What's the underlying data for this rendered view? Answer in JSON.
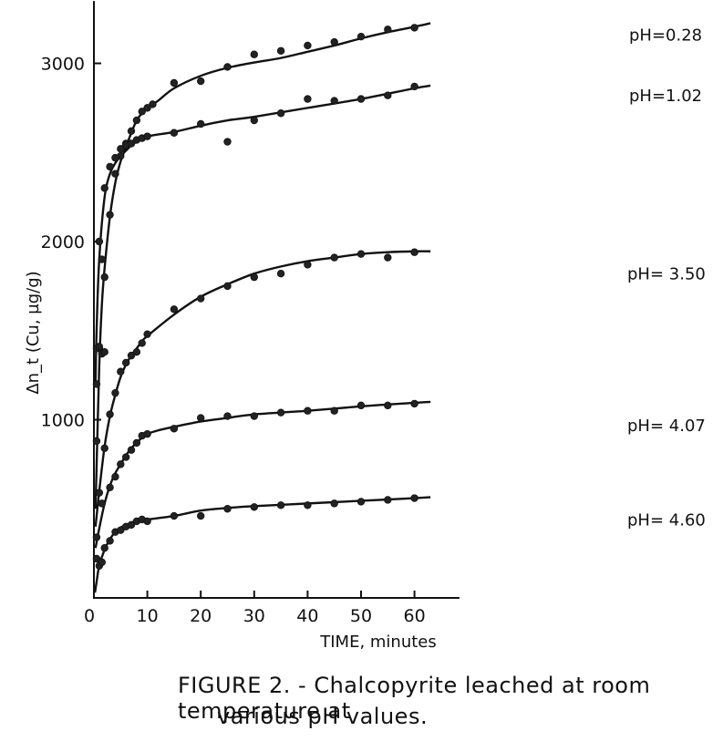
{
  "chart_data": {
    "type": "scatter",
    "title": "",
    "xlabel": "TIME, minutes",
    "ylabel": "Δn_t (Cu, µg/g)",
    "xlim": [
      0,
      65
    ],
    "ylim": [
      0,
      3350
    ],
    "x_ticks": [
      0,
      10,
      20,
      30,
      40,
      50,
      60
    ],
    "y_ticks": [
      1000,
      2000,
      3000
    ],
    "series": [
      {
        "name": "pH=0.28",
        "points": [
          [
            0.5,
            1200
          ],
          [
            1,
            1400
          ],
          [
            1.5,
            1900
          ],
          [
            2,
            1800
          ],
          [
            3,
            2150
          ],
          [
            4,
            2380
          ],
          [
            5,
            2480
          ],
          [
            6,
            2550
          ],
          [
            7,
            2620
          ],
          [
            8,
            2680
          ],
          [
            9,
            2730
          ],
          [
            10,
            2750
          ],
          [
            11,
            2770
          ],
          [
            15,
            2890
          ],
          [
            20,
            2900
          ],
          [
            25,
            2980
          ],
          [
            30,
            3050
          ],
          [
            35,
            3070
          ],
          [
            40,
            3100
          ],
          [
            45,
            3120
          ],
          [
            50,
            3150
          ],
          [
            55,
            3190
          ],
          [
            60,
            3200
          ]
        ],
        "curve": [
          [
            0.3,
            500
          ],
          [
            1,
            1300
          ],
          [
            1.5,
            1650
          ],
          [
            2,
            1850
          ],
          [
            3,
            2140
          ],
          [
            4,
            2330
          ],
          [
            5,
            2450
          ],
          [
            6,
            2530
          ],
          [
            7,
            2610
          ],
          [
            8,
            2680
          ],
          [
            9,
            2720
          ],
          [
            10,
            2750
          ],
          [
            12,
            2790
          ],
          [
            15,
            2860
          ],
          [
            20,
            2930
          ],
          [
            25,
            2975
          ],
          [
            30,
            3005
          ],
          [
            35,
            3030
          ],
          [
            40,
            3065
          ],
          [
            45,
            3100
          ],
          [
            50,
            3140
          ],
          [
            55,
            3175
          ],
          [
            60,
            3205
          ],
          [
            63,
            3225
          ]
        ],
        "label": "pH=0.28"
      },
      {
        "name": "pH=1.02",
        "points": [
          [
            0.5,
            1400
          ],
          [
            1,
            2000
          ],
          [
            2,
            2300
          ],
          [
            3,
            2420
          ],
          [
            4,
            2470
          ],
          [
            5,
            2520
          ],
          [
            6,
            2540
          ],
          [
            7,
            2550
          ],
          [
            8,
            2570
          ],
          [
            9,
            2580
          ],
          [
            10,
            2590
          ],
          [
            15,
            2610
          ],
          [
            20,
            2660
          ],
          [
            25,
            2560
          ],
          [
            30,
            2680
          ],
          [
            35,
            2720
          ],
          [
            40,
            2800
          ],
          [
            45,
            2790
          ],
          [
            50,
            2800
          ],
          [
            55,
            2820
          ],
          [
            60,
            2870
          ]
        ],
        "curve": [
          [
            0.3,
            1200
          ],
          [
            0.5,
            1500
          ],
          [
            1,
            1900
          ],
          [
            2,
            2250
          ],
          [
            3,
            2380
          ],
          [
            4,
            2440
          ],
          [
            5,
            2480
          ],
          [
            6,
            2510
          ],
          [
            7,
            2540
          ],
          [
            8,
            2560
          ],
          [
            10,
            2590
          ],
          [
            15,
            2615
          ],
          [
            20,
            2650
          ],
          [
            25,
            2680
          ],
          [
            30,
            2700
          ],
          [
            40,
            2750
          ],
          [
            50,
            2800
          ],
          [
            60,
            2860
          ],
          [
            63,
            2875
          ]
        ],
        "label": "pH=1.02"
      },
      {
        "name": "pH=3.50",
        "points": [
          [
            0.5,
            880
          ],
          [
            1,
            1410
          ],
          [
            1.5,
            1370
          ],
          [
            2,
            1380
          ],
          [
            3,
            1030
          ],
          [
            4,
            1150
          ],
          [
            5,
            1270
          ],
          [
            6,
            1320
          ],
          [
            7,
            1360
          ],
          [
            8,
            1380
          ],
          [
            9,
            1430
          ],
          [
            10,
            1480
          ],
          [
            15,
            1620
          ],
          [
            20,
            1680
          ],
          [
            25,
            1750
          ],
          [
            30,
            1800
          ],
          [
            35,
            1820
          ],
          [
            40,
            1870
          ],
          [
            45,
            1910
          ],
          [
            50,
            1930
          ],
          [
            55,
            1910
          ],
          [
            60,
            1940
          ]
        ],
        "curve": [
          [
            0.3,
            400
          ],
          [
            1,
            600
          ],
          [
            2,
            850
          ],
          [
            3,
            1020
          ],
          [
            4,
            1140
          ],
          [
            5,
            1240
          ],
          [
            6,
            1310
          ],
          [
            7,
            1360
          ],
          [
            8,
            1400
          ],
          [
            9,
            1440
          ],
          [
            10,
            1470
          ],
          [
            15,
            1590
          ],
          [
            20,
            1690
          ],
          [
            25,
            1760
          ],
          [
            30,
            1820
          ],
          [
            35,
            1860
          ],
          [
            40,
            1890
          ],
          [
            45,
            1910
          ],
          [
            50,
            1930
          ],
          [
            55,
            1940
          ],
          [
            60,
            1945
          ],
          [
            63,
            1945
          ]
        ],
        "label": "pH=3.50"
      },
      {
        "name": "pH=4.07",
        "points": [
          [
            0.5,
            340
          ],
          [
            1,
            590
          ],
          [
            1.5,
            530
          ],
          [
            2,
            840
          ],
          [
            3,
            620
          ],
          [
            4,
            680
          ],
          [
            5,
            750
          ],
          [
            6,
            790
          ],
          [
            7,
            830
          ],
          [
            8,
            870
          ],
          [
            9,
            910
          ],
          [
            10,
            920
          ],
          [
            15,
            950
          ],
          [
            20,
            1010
          ],
          [
            25,
            1020
          ],
          [
            30,
            1020
          ],
          [
            35,
            1040
          ],
          [
            40,
            1050
          ],
          [
            45,
            1050
          ],
          [
            50,
            1080
          ],
          [
            55,
            1080
          ],
          [
            60,
            1090
          ]
        ],
        "curve": [
          [
            0.3,
            280
          ],
          [
            1,
            390
          ],
          [
            2,
            530
          ],
          [
            3,
            630
          ],
          [
            4,
            700
          ],
          [
            5,
            750
          ],
          [
            6,
            800
          ],
          [
            7,
            840
          ],
          [
            8,
            870
          ],
          [
            9,
            900
          ],
          [
            10,
            920
          ],
          [
            12,
            940
          ],
          [
            15,
            960
          ],
          [
            20,
            990
          ],
          [
            25,
            1010
          ],
          [
            30,
            1030
          ],
          [
            40,
            1050
          ],
          [
            50,
            1075
          ],
          [
            60,
            1095
          ],
          [
            63,
            1100
          ]
        ],
        "label": "pH=4.07"
      },
      {
        "name": "pH=4.60",
        "points": [
          [
            0.5,
            220
          ],
          [
            1,
            180
          ],
          [
            1.5,
            200
          ],
          [
            2,
            280
          ],
          [
            3,
            320
          ],
          [
            4,
            370
          ],
          [
            5,
            380
          ],
          [
            6,
            400
          ],
          [
            7,
            410
          ],
          [
            8,
            430
          ],
          [
            9,
            440
          ],
          [
            10,
            430
          ],
          [
            15,
            460
          ],
          [
            20,
            460
          ],
          [
            25,
            500
          ],
          [
            30,
            510
          ],
          [
            35,
            520
          ],
          [
            40,
            520
          ],
          [
            45,
            530
          ],
          [
            50,
            540
          ],
          [
            55,
            550
          ],
          [
            60,
            560
          ]
        ],
        "curve": [
          [
            0.2,
            30
          ],
          [
            0.5,
            90
          ],
          [
            1,
            180
          ],
          [
            2,
            270
          ],
          [
            3,
            330
          ],
          [
            4,
            370
          ],
          [
            5,
            395
          ],
          [
            6,
            410
          ],
          [
            7,
            420
          ],
          [
            8,
            430
          ],
          [
            10,
            440
          ],
          [
            15,
            460
          ],
          [
            20,
            490
          ],
          [
            25,
            505
          ],
          [
            30,
            515
          ],
          [
            40,
            530
          ],
          [
            50,
            545
          ],
          [
            60,
            560
          ],
          [
            63,
            565
          ]
        ],
        "label": "pH=4.60"
      }
    ],
    "annotations": [
      "pH=0.28",
      "pH=1.02",
      "pH= 3.50",
      "pH= 4.07",
      "pH= 4.60"
    ]
  },
  "caption": {
    "line1": "FIGURE 2. - Chalcopyrite leached at room temperature at",
    "line2": "various pH values."
  }
}
